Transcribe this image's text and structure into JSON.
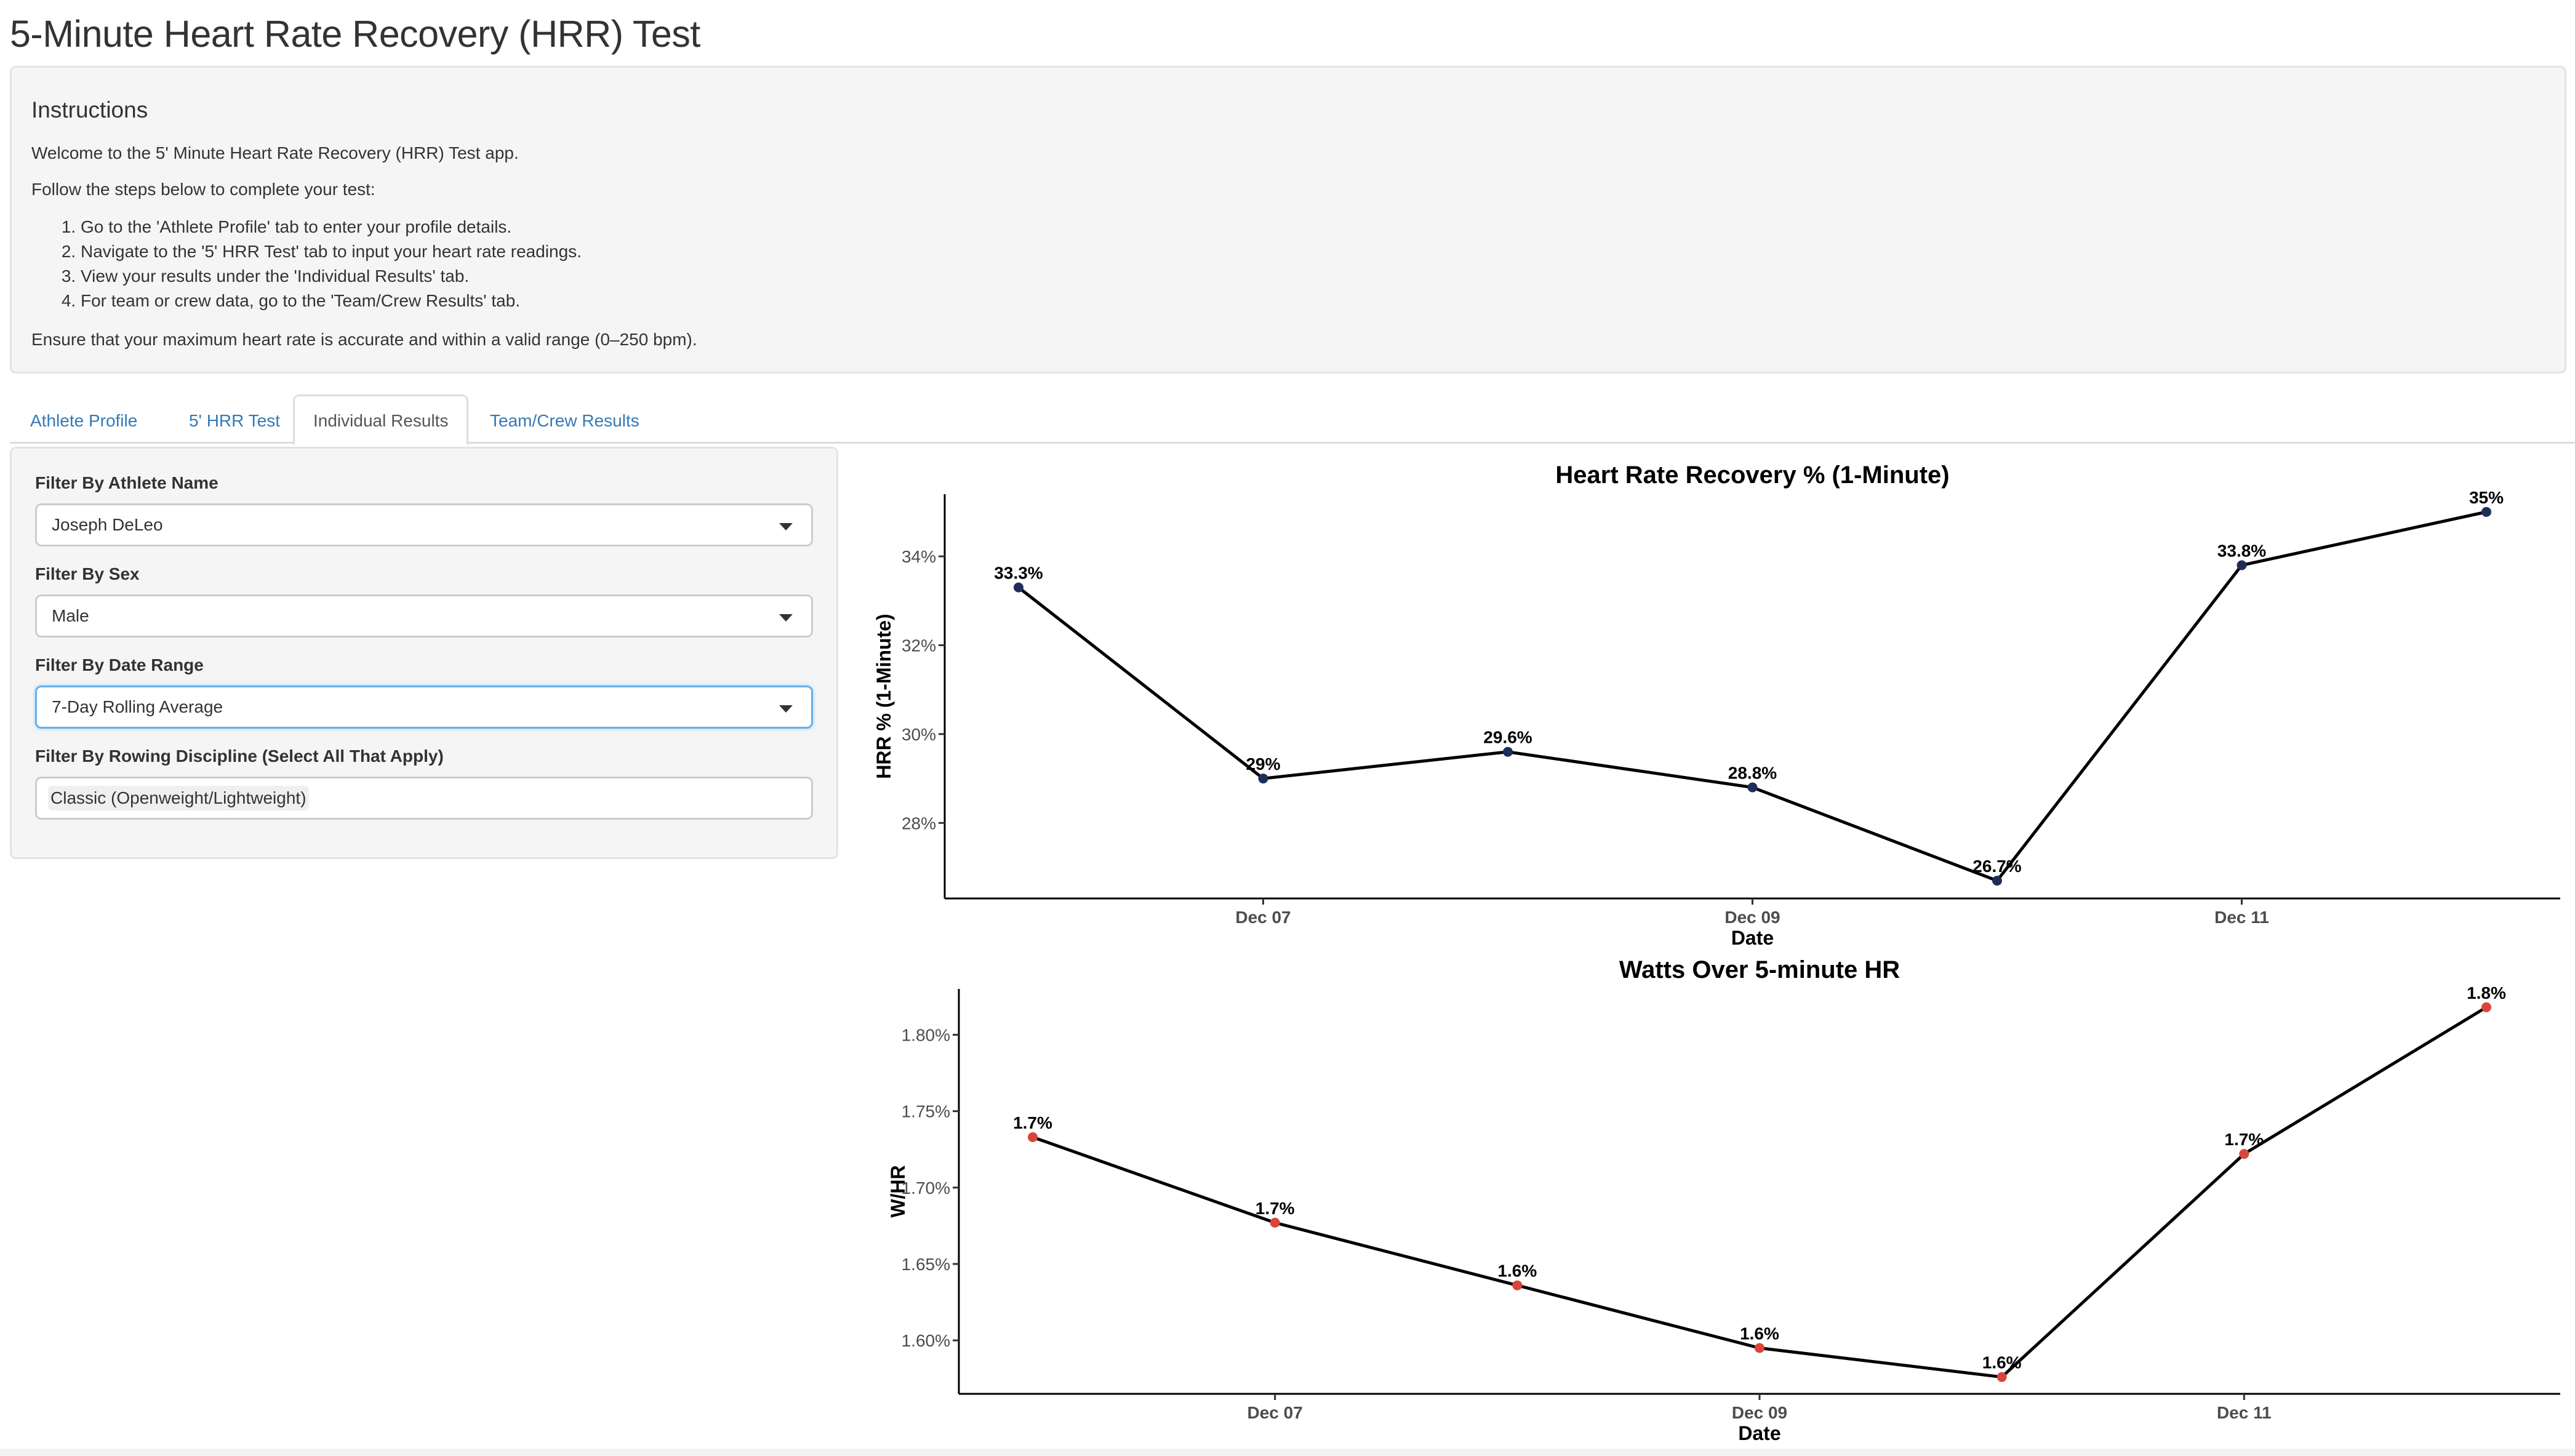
{
  "app": {
    "title": "5-Minute Heart Rate Recovery (HRR) Test"
  },
  "instructions": {
    "heading": "Instructions",
    "welcome": "Welcome to the 5' Minute Heart Rate Recovery (HRR) Test app.",
    "follow": "Follow the steps below to complete your test:",
    "steps": [
      "Go to the 'Athlete Profile' tab to enter your profile details.",
      "Navigate to the '5' HRR Test' tab to input your heart rate readings.",
      "View your results under the 'Individual Results' tab.",
      "For team or crew data, go to the 'Team/Crew Results' tab."
    ],
    "note": "Ensure that your maximum heart rate is accurate and within a valid range (0–250 bpm)."
  },
  "tabs": [
    {
      "label": "Athlete Profile",
      "active": false
    },
    {
      "label": "5' HRR Test",
      "active": false
    },
    {
      "label": "Individual Results",
      "active": true
    },
    {
      "label": "Team/Crew Results",
      "active": false
    }
  ],
  "filters": {
    "athlete": {
      "label": "Filter By Athlete Name",
      "value": "Joseph DeLeo"
    },
    "sex": {
      "label": "Filter By Sex",
      "value": "Male"
    },
    "date_range": {
      "label": "Filter By Date Range",
      "value": "7-Day Rolling Average"
    },
    "discipline": {
      "label": "Filter By Rowing Discipline (Select All That Apply)",
      "value": "Classic (Openweight/Lightweight)"
    }
  },
  "colors": {
    "link": "#337ab7",
    "hrr_point": "#1f2d5a",
    "watts_point": "#d9453b",
    "line": "#000000"
  },
  "chart_data": [
    {
      "type": "line",
      "title": "Heart Rate Recovery % (1-Minute)",
      "xlabel": "Date",
      "ylabel": "HRR % (1-Minute)",
      "x": [
        "2024-12-06",
        "2024-12-07",
        "2024-12-08",
        "2024-12-09",
        "2024-12-10",
        "2024-12-11",
        "2024-12-12"
      ],
      "x_ticks": [
        "Dec 07",
        "Dec 09",
        "Dec 11"
      ],
      "y_ticks": [
        "28%",
        "30%",
        "32%",
        "34%"
      ],
      "ylim": [
        26.3,
        35.4
      ],
      "values": [
        33.3,
        29.0,
        29.6,
        28.8,
        26.7,
        33.8,
        35.0
      ],
      "data_labels": [
        "33.3%",
        "29%",
        "29.6%",
        "28.8%",
        "26.7%",
        "33.8%",
        "35%"
      ],
      "grid": false
    },
    {
      "type": "line",
      "title": "Watts Over 5-minute HR",
      "xlabel": "Date",
      "ylabel": "W/HR",
      "x": [
        "2024-12-06",
        "2024-12-07",
        "2024-12-08",
        "2024-12-09",
        "2024-12-10",
        "2024-12-11",
        "2024-12-12"
      ],
      "x_ticks": [
        "Dec 07",
        "Dec 09",
        "Dec 11"
      ],
      "y_ticks": [
        "1.60%",
        "1.65%",
        "1.70%",
        "1.75%",
        "1.80%"
      ],
      "ylim": [
        1.565,
        1.83
      ],
      "values": [
        1.733,
        1.677,
        1.636,
        1.595,
        1.576,
        1.722,
        1.818
      ],
      "data_labels": [
        "1.7%",
        "1.7%",
        "1.6%",
        "1.6%",
        "1.6%",
        "1.7%",
        "1.8%"
      ],
      "grid": false
    }
  ]
}
